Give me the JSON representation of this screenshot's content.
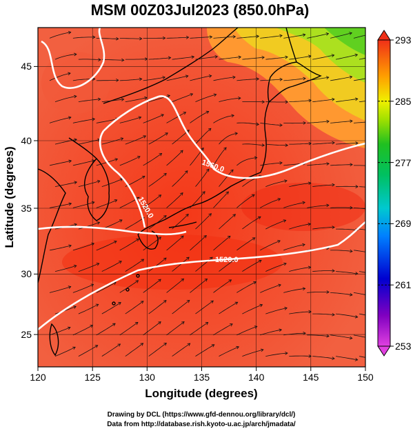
{
  "title": "MSM 00Z03Jul2023 (850.0hPa)",
  "x_axis": {
    "label": "Longitude (degrees)",
    "range": [
      120,
      150
    ],
    "ticks": [
      "120",
      "125",
      "130",
      "135",
      "140",
      "145",
      "150"
    ]
  },
  "y_axis": {
    "label": "Latitude (degrees)",
    "range": [
      22.4,
      47.6
    ],
    "ticks": [
      "25",
      "30",
      "35",
      "40",
      "45"
    ]
  },
  "colorbar": {
    "min": 253,
    "max": 293,
    "labels": [
      "293",
      "285",
      "277",
      "269",
      "261",
      "253"
    ]
  },
  "contours": {
    "color": "#ffffff",
    "labels": [
      "1560.0",
      "1520.0",
      "1520.0"
    ]
  },
  "credits": {
    "line1": "Drawing by DCL (https://www.gfd-dennou.org/library/dcl/)",
    "line2": "Data from http://database.rish.kyoto-u.ac.jp/arch/jmadata/"
  }
}
